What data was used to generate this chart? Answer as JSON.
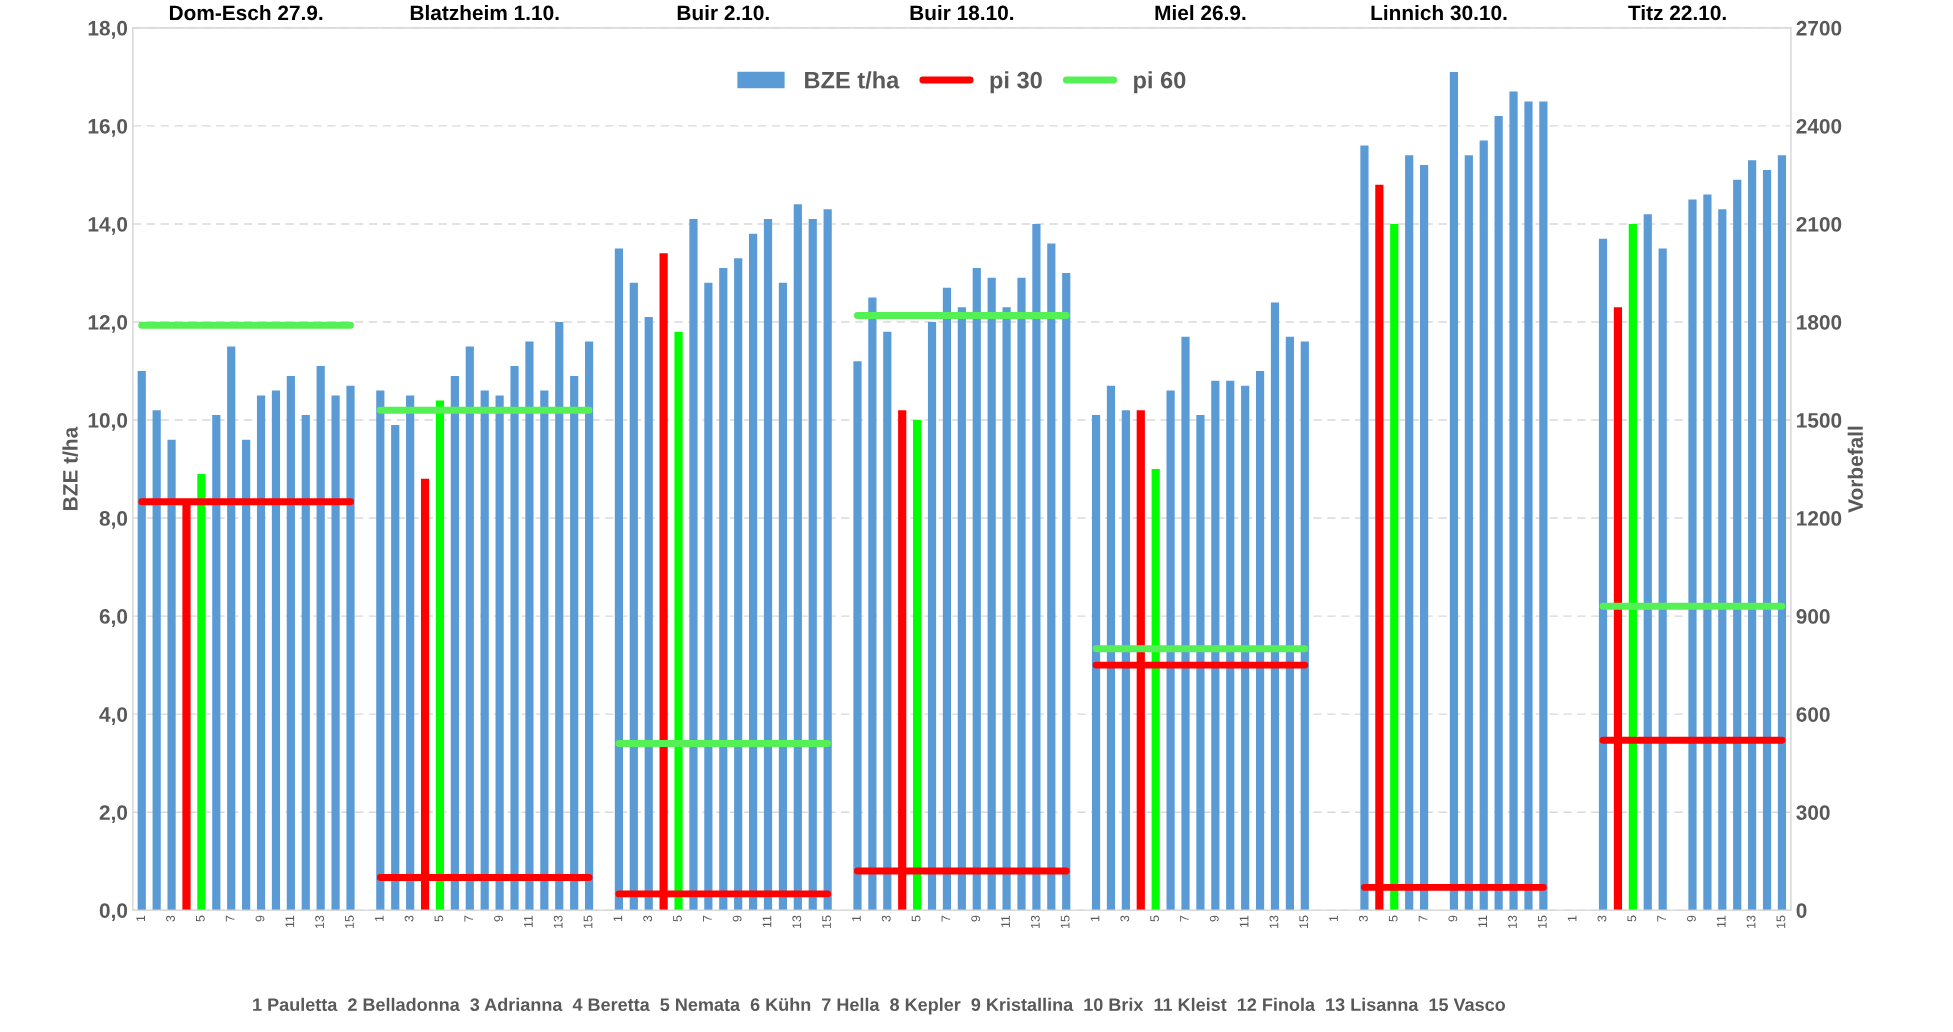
{
  "chart_data": {
    "type": "bar",
    "categories": [
      "1",
      null,
      "3",
      null,
      "5",
      null,
      "7",
      null,
      "9",
      null,
      "11",
      null,
      "13",
      null,
      "15",
      null,
      "1",
      null,
      "3",
      null,
      "5",
      null,
      "7",
      null,
      "9",
      null,
      "11",
      null,
      "13",
      null,
      "15",
      null,
      "1",
      null,
      "3",
      null,
      "5",
      null,
      "7",
      null,
      "9",
      null,
      "11",
      null,
      "13",
      null,
      "15",
      null,
      "1",
      null,
      "3",
      null,
      "5",
      null,
      "7",
      null,
      "9",
      null,
      "11",
      null,
      "13",
      null,
      "15",
      null,
      "1",
      null,
      "3",
      null,
      "5",
      null,
      "7",
      null,
      "9",
      null,
      "11",
      null,
      "13",
      null,
      "15",
      null,
      "1",
      null,
      "3",
      null,
      "5",
      null,
      "7",
      null,
      "9",
      null,
      "11",
      null,
      "13",
      null,
      "15",
      null,
      "1",
      null,
      "3",
      null,
      "5",
      null,
      "7",
      null,
      "9",
      null,
      "11",
      null,
      "13",
      null,
      "15"
    ],
    "series": [
      {
        "name": "BZE t/ha",
        "color": "#5b9bd5",
        "colors": [
          "#5b9bd5",
          "#5b9bd5",
          "#5b9bd5",
          "#ff0000",
          "#00ff00",
          "#5b9bd5",
          "#5b9bd5",
          "#5b9bd5",
          "#5b9bd5",
          "#5b9bd5",
          "#5b9bd5",
          "#5b9bd5",
          "#5b9bd5",
          "#5b9bd5",
          "#5b9bd5",
          "#5b9bd5",
          "#5b9bd5",
          "#5b9bd5",
          "#5b9bd5",
          "#ff0000",
          "#00ff00",
          "#5b9bd5",
          "#5b9bd5",
          "#5b9bd5",
          "#5b9bd5",
          "#5b9bd5",
          "#5b9bd5",
          "#5b9bd5",
          "#5b9bd5",
          "#5b9bd5",
          "#5b9bd5",
          "#5b9bd5",
          "#5b9bd5",
          "#5b9bd5",
          "#5b9bd5",
          "#ff0000",
          "#00ff00",
          "#5b9bd5",
          "#5b9bd5",
          "#5b9bd5",
          "#5b9bd5",
          "#5b9bd5",
          "#5b9bd5",
          "#5b9bd5",
          "#5b9bd5",
          "#5b9bd5",
          "#5b9bd5",
          "#5b9bd5",
          "#5b9bd5",
          "#5b9bd5",
          "#5b9bd5",
          "#ff0000",
          "#00ff00",
          "#5b9bd5",
          "#5b9bd5",
          "#5b9bd5",
          "#5b9bd5",
          "#5b9bd5",
          "#5b9bd5",
          "#5b9bd5",
          "#5b9bd5",
          "#5b9bd5",
          "#5b9bd5",
          "#5b9bd5",
          "#5b9bd5",
          "#5b9bd5",
          "#5b9bd5",
          "#ff0000",
          "#00ff00",
          "#5b9bd5",
          "#5b9bd5",
          "#5b9bd5",
          "#5b9bd5",
          "#5b9bd5",
          "#5b9bd5",
          "#5b9bd5",
          "#5b9bd5",
          "#5b9bd5",
          "#5b9bd5",
          "#5b9bd5",
          "#5b9bd5",
          "#5b9bd5",
          "#5b9bd5",
          "#ff0000",
          "#00ff00",
          "#5b9bd5",
          "#5b9bd5",
          "#5b9bd5",
          "#5b9bd5",
          "#5b9bd5",
          "#5b9bd5",
          "#5b9bd5",
          "#5b9bd5",
          "#5b9bd5",
          "#5b9bd5",
          "#5b9bd5",
          "#5b9bd5",
          "#5b9bd5",
          "#5b9bd5",
          "#ff0000",
          "#00ff00",
          "#5b9bd5",
          "#5b9bd5",
          "#5b9bd5",
          "#5b9bd5",
          "#5b9bd5",
          "#5b9bd5",
          "#5b9bd5",
          "#5b9bd5",
          "#5b9bd5",
          "#5b9bd5"
        ],
        "values": [
          11.0,
          10.2,
          9.6,
          8.3,
          8.9,
          10.1,
          11.5,
          9.6,
          10.5,
          10.6,
          10.9,
          10.1,
          11.1,
          10.5,
          10.7,
          null,
          10.6,
          9.9,
          10.5,
          8.8,
          10.4,
          10.9,
          11.5,
          10.6,
          10.5,
          11.1,
          11.6,
          10.6,
          12.0,
          10.9,
          11.6,
          null,
          13.5,
          12.8,
          12.1,
          13.4,
          11.8,
          14.1,
          12.8,
          13.1,
          13.3,
          13.8,
          14.1,
          12.8,
          14.4,
          14.1,
          14.3,
          null,
          11.2,
          12.5,
          11.8,
          10.2,
          10.0,
          12.0,
          12.7,
          12.3,
          13.1,
          12.9,
          12.3,
          12.9,
          14.0,
          13.6,
          13.0,
          null,
          10.1,
          10.7,
          10.2,
          10.2,
          9.0,
          10.6,
          11.7,
          10.1,
          10.8,
          10.8,
          10.7,
          11.0,
          12.4,
          11.7,
          11.6,
          null,
          null,
          null,
          15.6,
          14.8,
          14.0,
          15.4,
          15.2,
          null,
          17.1,
          15.4,
          15.7,
          16.2,
          16.7,
          16.5,
          16.5,
          null,
          null,
          null,
          13.7,
          12.3,
          14.0,
          14.2,
          13.5,
          null,
          14.5,
          14.6,
          14.3,
          14.9,
          15.3,
          15.1,
          15.4
        ]
      },
      {
        "name": "pi 30",
        "type": "line",
        "axis": "y2",
        "color": "#ff0000",
        "values": [
          1250,
          1250,
          1250,
          1250,
          1250,
          1250,
          1250,
          1250,
          1250,
          1250,
          1250,
          1250,
          1250,
          1250,
          1250,
          null,
          100,
          100,
          100,
          100,
          100,
          100,
          100,
          100,
          100,
          100,
          100,
          100,
          100,
          100,
          100,
          null,
          50,
          50,
          50,
          50,
          50,
          50,
          50,
          50,
          50,
          50,
          50,
          50,
          50,
          50,
          50,
          null,
          120,
          120,
          120,
          120,
          120,
          120,
          120,
          120,
          120,
          120,
          120,
          120,
          120,
          120,
          120,
          null,
          750,
          750,
          750,
          750,
          750,
          750,
          750,
          750,
          750,
          750,
          750,
          750,
          750,
          750,
          750,
          null,
          null,
          null,
          70,
          70,
          70,
          70,
          70,
          70,
          70,
          70,
          70,
          70,
          70,
          70,
          70,
          null,
          null,
          null,
          520,
          520,
          520,
          520,
          520,
          520,
          520,
          520,
          520,
          520,
          520,
          520,
          520
        ]
      },
      {
        "name": "pi 60",
        "type": "line",
        "axis": "y2",
        "color": "#55f055",
        "values": [
          1790,
          1790,
          1790,
          1790,
          1790,
          1790,
          1790,
          1790,
          1790,
          1790,
          1790,
          1790,
          1790,
          1790,
          1790,
          null,
          1530,
          1530,
          1530,
          1530,
          1530,
          1530,
          1530,
          1530,
          1530,
          1530,
          1530,
          1530,
          1530,
          1530,
          1530,
          null,
          510,
          510,
          510,
          510,
          510,
          510,
          510,
          510,
          510,
          510,
          510,
          510,
          510,
          510,
          510,
          null,
          1820,
          1820,
          1820,
          1820,
          1820,
          1820,
          1820,
          1820,
          1820,
          1820,
          1820,
          1820,
          1820,
          1820,
          1820,
          null,
          800,
          800,
          800,
          800,
          800,
          800,
          800,
          800,
          800,
          800,
          800,
          800,
          800,
          800,
          800,
          null,
          null,
          null,
          null,
          null,
          null,
          null,
          null,
          null,
          null,
          null,
          null,
          null,
          null,
          null,
          null,
          null,
          null,
          null,
          930,
          930,
          930,
          930,
          930,
          930,
          930,
          930,
          930,
          930,
          930,
          930,
          930
        ]
      }
    ],
    "ylabel": "BZE t/ha",
    "y2label": "Vorbefall",
    "ylim": [
      0,
      18
    ],
    "yticks": [
      {
        "value": 0,
        "label": "0,0"
      },
      {
        "value": 2,
        "label": "2,0"
      },
      {
        "value": 4,
        "label": "4,0"
      },
      {
        "value": 6,
        "label": "6,0"
      },
      {
        "value": 8,
        "label": "8,0"
      },
      {
        "value": 10,
        "label": "10,0"
      },
      {
        "value": 12,
        "label": "12,0"
      },
      {
        "value": 14,
        "label": "14,0"
      },
      {
        "value": 16,
        "label": "16,0"
      },
      {
        "value": 18,
        "label": "18,0"
      }
    ],
    "y2lim": [
      0,
      2700
    ],
    "y2ticks": [
      0,
      300,
      600,
      900,
      1200,
      1500,
      1800,
      2100,
      2400,
      2700
    ],
    "grid": "y",
    "legend": "top",
    "annotations": [
      "Dom-Esch 27.9.",
      "Blatzheim 1.10.",
      "Buir 2.10.",
      "Buir 18.10.",
      "Miel 26.9.",
      "Linnich 30.10.",
      "Titz 22.10.",
      "1 Pauletta  2 Belladonna  3 Adrianna  4 Beretta  5 Nemata  6 Kühn  7 Hella  8 Kepler  9 Kristallina  10 Brix  11 Kleist  12 Finola  13 Lisanna  15 Vasco"
    ]
  }
}
